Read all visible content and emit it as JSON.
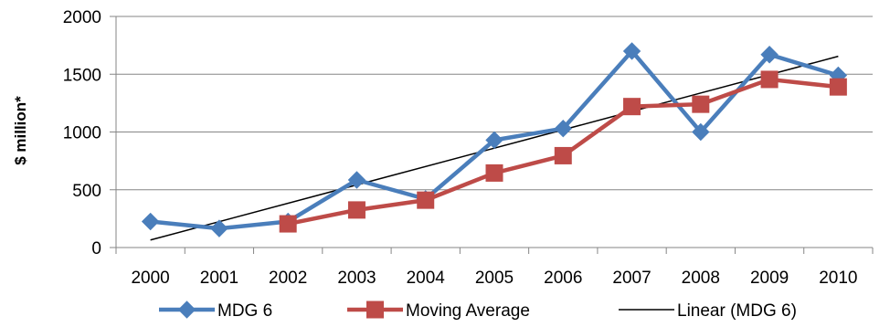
{
  "chart_data": {
    "type": "line",
    "title": "",
    "xlabel": "",
    "ylabel": "$ million*",
    "categories": [
      "2000",
      "2001",
      "2002",
      "2003",
      "2004",
      "2005",
      "2006",
      "2007",
      "2008",
      "2009",
      "2010"
    ],
    "ylim": [
      0,
      2000
    ],
    "yticks": [
      0,
      500,
      1000,
      1500,
      2000
    ],
    "grid": true,
    "legend_position": "bottom",
    "series": [
      {
        "name": "MDG 6",
        "color": "#4a7ebb",
        "marker": "diamond",
        "values": [
          225,
          165,
          225,
          585,
          420,
          930,
          1030,
          1700,
          1000,
          1670,
          1490
        ]
      },
      {
        "name": "Moving Average",
        "color": "#be4b48",
        "marker": "square",
        "values": [
          null,
          null,
          205,
          325,
          410,
          645,
          795,
          1220,
          1240,
          1455,
          1390
        ]
      },
      {
        "name": "Linear (MDG 6)",
        "color": "#000000",
        "marker": "none",
        "type": "trendline",
        "values": [
          65,
          224,
          383,
          542,
          701,
          860,
          1019,
          1178,
          1337,
          1496,
          1655
        ]
      }
    ]
  }
}
